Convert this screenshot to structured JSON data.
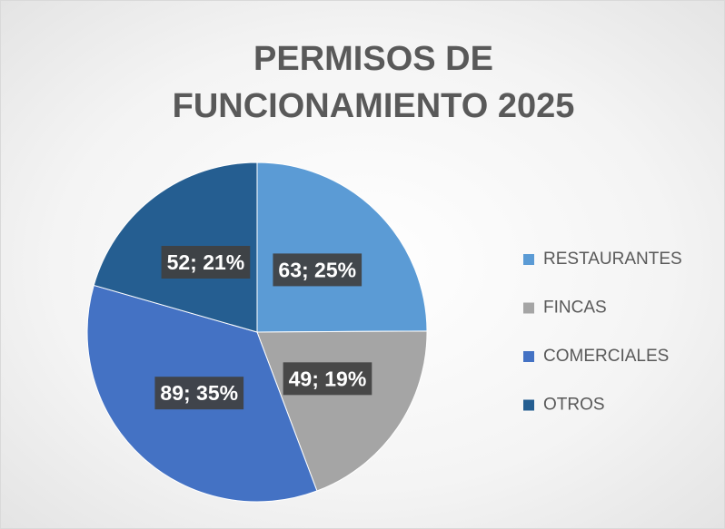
{
  "chart_data": {
    "type": "pie",
    "title": "PERMISOS DE FUNCIONAMIENTO 2025",
    "categories": [
      "RESTAURANTES",
      "FINCAS",
      "COMERCIALES",
      "OTROS"
    ],
    "values": [
      63,
      49,
      89,
      52
    ],
    "value_labels": [
      "63; 25%",
      "49; 19%",
      "89; 35%",
      "52; 21%"
    ],
    "colors": [
      "#5b9bd5",
      "#a5a5a5",
      "#4472c4",
      "#255e91"
    ],
    "legend": "right"
  }
}
